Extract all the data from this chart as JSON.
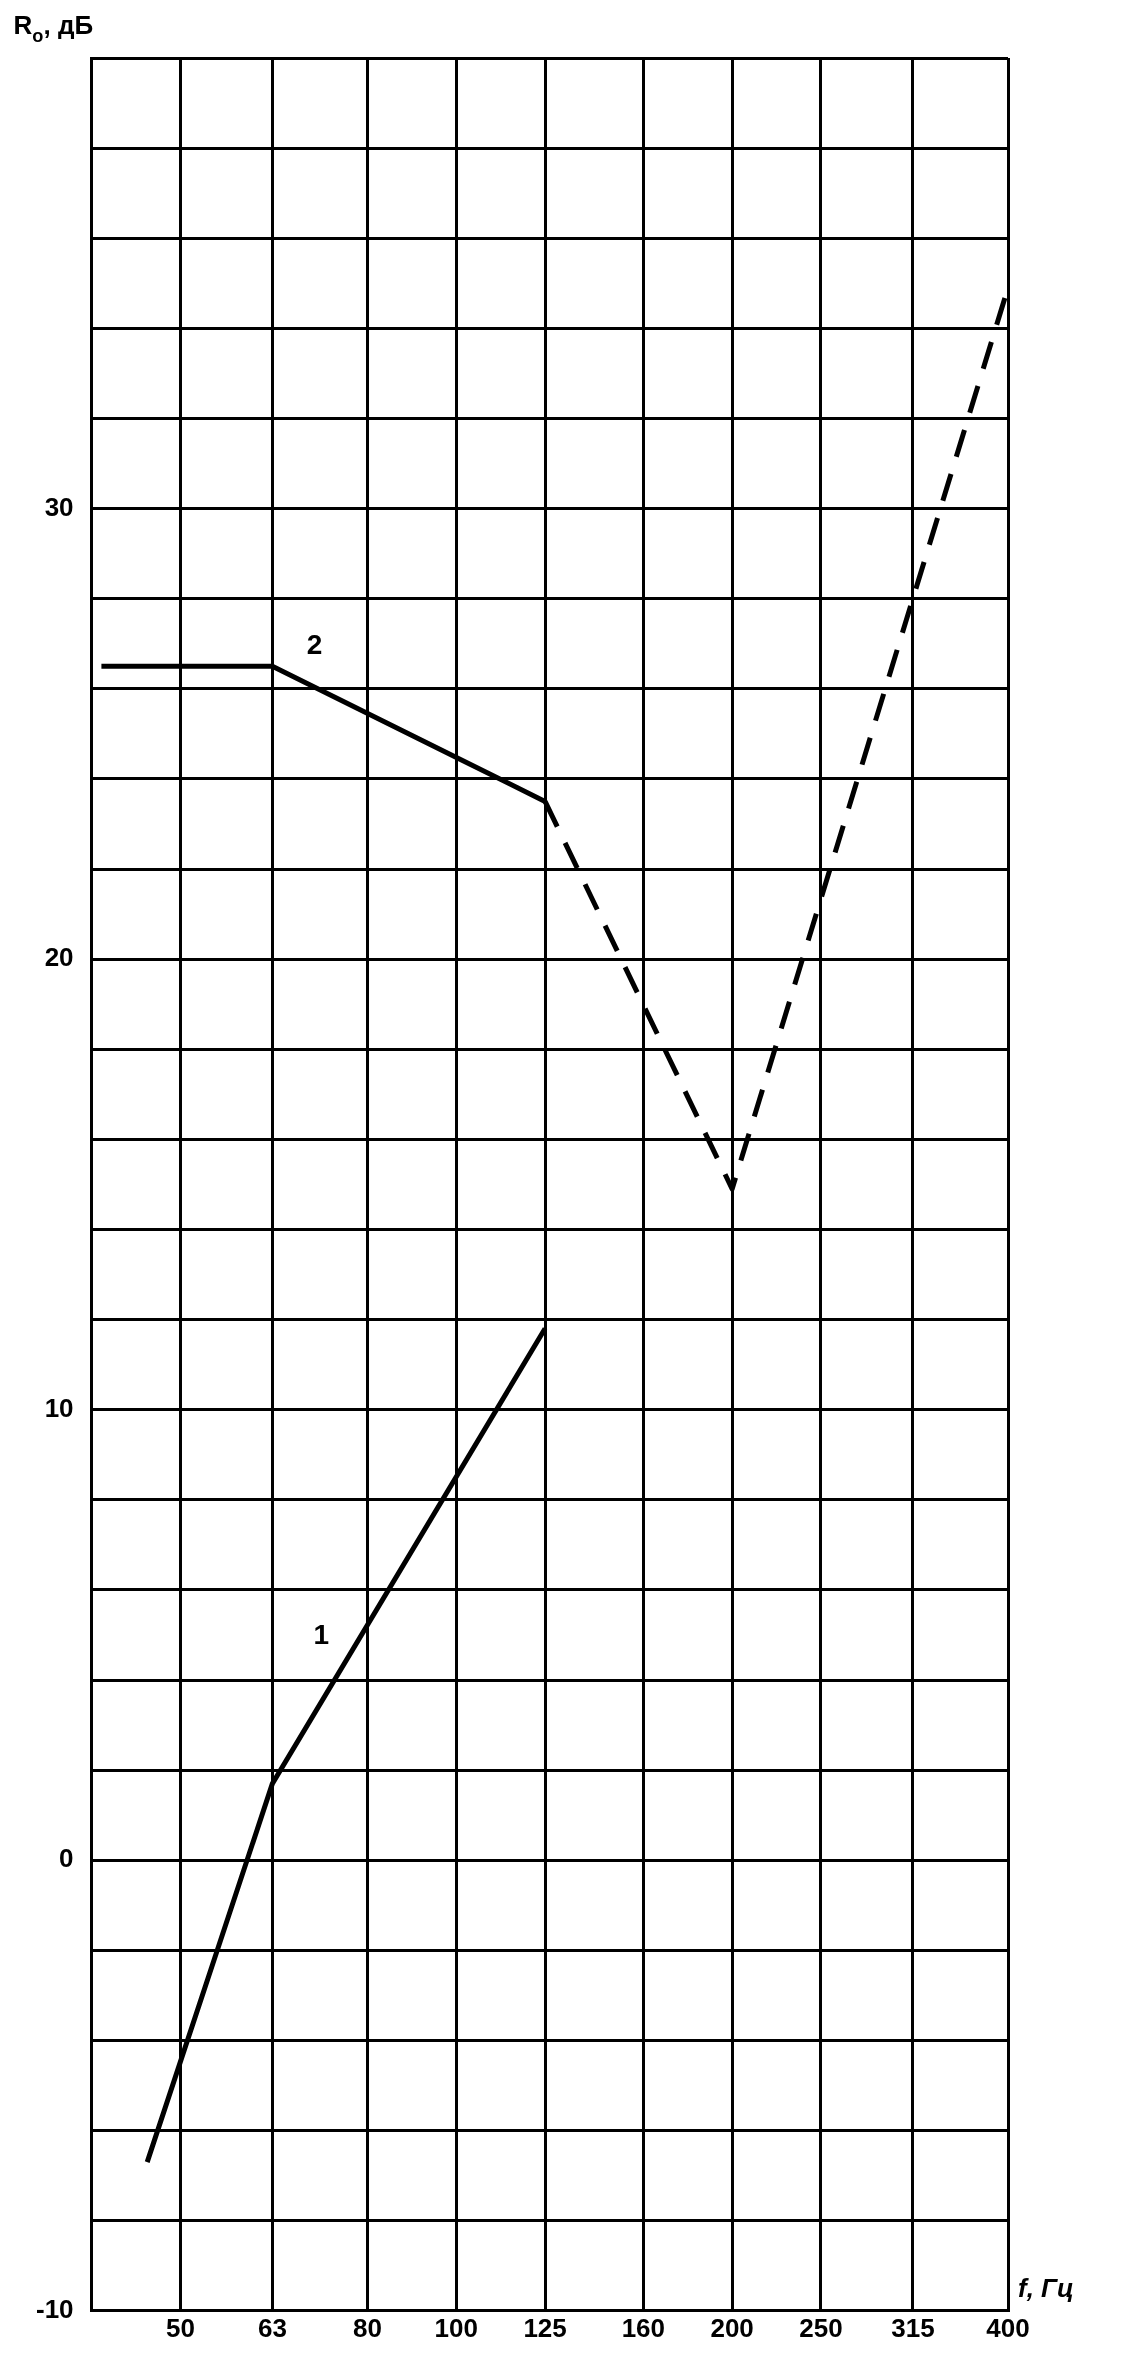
{
  "chart_data": {
    "type": "line",
    "xlabel": "f, Гц",
    "ylabel": "R$_{o}$, дБ",
    "log": "x",
    "xlim": [
      40,
      400
    ],
    "xticks": [
      {
        "value": 40,
        "label": null
      },
      50,
      63,
      80,
      100,
      125,
      160,
      200,
      250,
      315,
      400
    ],
    "ylim": [
      -10,
      40
    ],
    "yticks": [
      -10,
      {
        "value": -8,
        "label": null
      },
      {
        "value": -6,
        "label": null
      },
      {
        "value": -4,
        "label": null
      },
      {
        "value": -2,
        "label": null
      },
      0,
      {
        "value": 2,
        "label": null
      },
      {
        "value": 4,
        "label": null
      },
      {
        "value": 6,
        "label": null
      },
      {
        "value": 8,
        "label": null
      },
      10,
      {
        "value": 12,
        "label": null
      },
      {
        "value": 14,
        "label": null
      },
      {
        "value": 16,
        "label": null
      },
      {
        "value": 18,
        "label": null
      },
      20,
      {
        "value": 22,
        "label": null
      },
      {
        "value": 24,
        "label": null
      },
      {
        "value": 26,
        "label": null
      },
      {
        "value": 28,
        "label": null
      },
      30,
      {
        "value": 32,
        "label": null
      },
      {
        "value": 34,
        "label": null
      },
      {
        "value": 36,
        "label": null
      },
      {
        "value": 38,
        "label": null
      },
      {
        "value": 40,
        "label": null
      }
    ],
    "grid": true,
    "legend": false,
    "marker": "none",
    "series": [
      {
        "name": "1",
        "color": "#000000",
        "x": [
          46,
          63,
          125
        ],
        "values": [
          -6.7,
          1.7,
          11.8
        ],
        "line_style": "solid"
      },
      {
        "name": "2",
        "color": "#000000",
        "x": [
          41,
          63,
          125
        ],
        "values": [
          26.5,
          26.5,
          23.5
        ],
        "line_style": "solid"
      },
      {
        "color": "#000000",
        "x": [
          125,
          200,
          400
        ],
        "values": [
          23.5,
          14.9,
          34.9
        ],
        "line_style": "dashed"
      }
    ]
  }
}
